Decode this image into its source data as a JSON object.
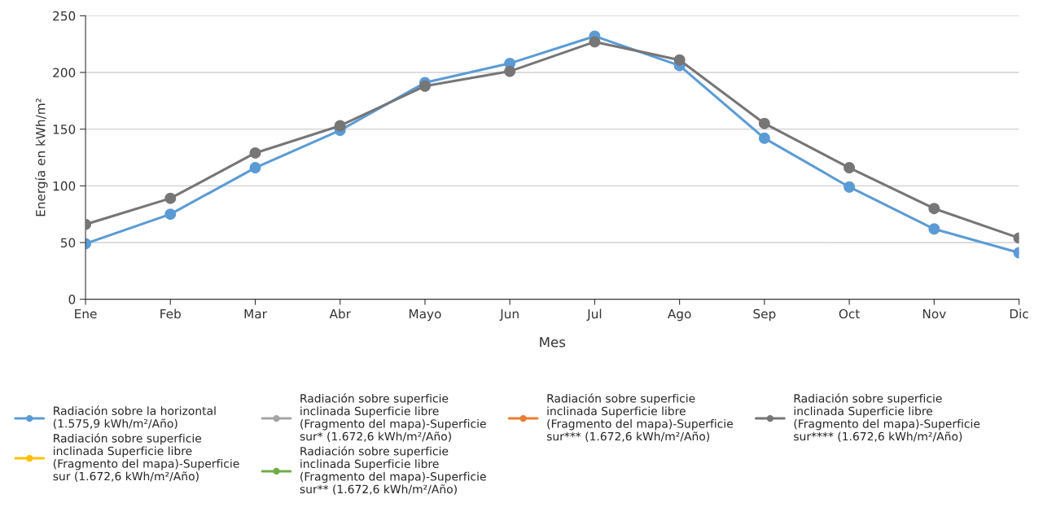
{
  "chart_data": {
    "type": "line",
    "xlabel": "Mes",
    "ylabel": "Energía en kWh/m²",
    "categories": [
      "Ene",
      "Feb",
      "Mar",
      "Abr",
      "Mayo",
      "Jun",
      "Jul",
      "Ago",
      "Sep",
      "Oct",
      "Nov",
      "Dic"
    ],
    "series": [
      {
        "name": "Radiación sobre la horizontal (1.575,9 kWh/m²/Año)",
        "color": "#5b9bd5",
        "values": [
          49,
          75,
          116,
          149,
          191,
          208,
          232,
          206,
          142,
          99,
          62,
          41
        ]
      },
      {
        "name": "Radiación sobre superficie inclinada Superficie libre (Fragmento del mapa)-Superficie sur (1.672,6 kWh/m²/Año)",
        "color": "#ffc000",
        "values": [
          null,
          null,
          null,
          null,
          null,
          null,
          null,
          null,
          null,
          null,
          null,
          null
        ]
      },
      {
        "name": "Radiación sobre superficie inclinada Superficie libre (Fragmento del mapa)-Superficie sur* (1.672,6 kWh/m²/Año)",
        "color": "#a5a5a5",
        "values": [
          null,
          null,
          null,
          null,
          null,
          null,
          null,
          null,
          null,
          null,
          null,
          null
        ]
      },
      {
        "name": "Radiación sobre superficie inclinada Superficie libre (Fragmento del mapa)-Superficie sur** (1.672,6 kWh/m²/Año)",
        "color": "#70ad47",
        "values": [
          null,
          null,
          null,
          null,
          null,
          null,
          null,
          null,
          null,
          null,
          null,
          null
        ]
      },
      {
        "name": "Radiación sobre superficie inclinada Superficie libre (Fragmento del mapa)-Superficie sur*** (1.672,6 kWh/m²/Año)",
        "color": "#ed7d31",
        "values": [
          null,
          null,
          null,
          null,
          null,
          null,
          null,
          null,
          null,
          null,
          null,
          null
        ]
      },
      {
        "name": "Radiación sobre superficie inclinada Superficie libre (Fragmento del mapa)-Superficie sur**** (1.672,6 kWh/m²/Año)",
        "color": "#767676",
        "values": [
          66,
          89,
          129,
          153,
          188,
          201,
          227,
          211,
          155,
          116,
          80,
          54
        ]
      }
    ],
    "ylim": [
      0,
      250
    ],
    "yticks": [
      0,
      50,
      100,
      150,
      200,
      250
    ],
    "grid": "y",
    "legend": "bottom",
    "marker": "circle",
    "line_style": "solid"
  }
}
